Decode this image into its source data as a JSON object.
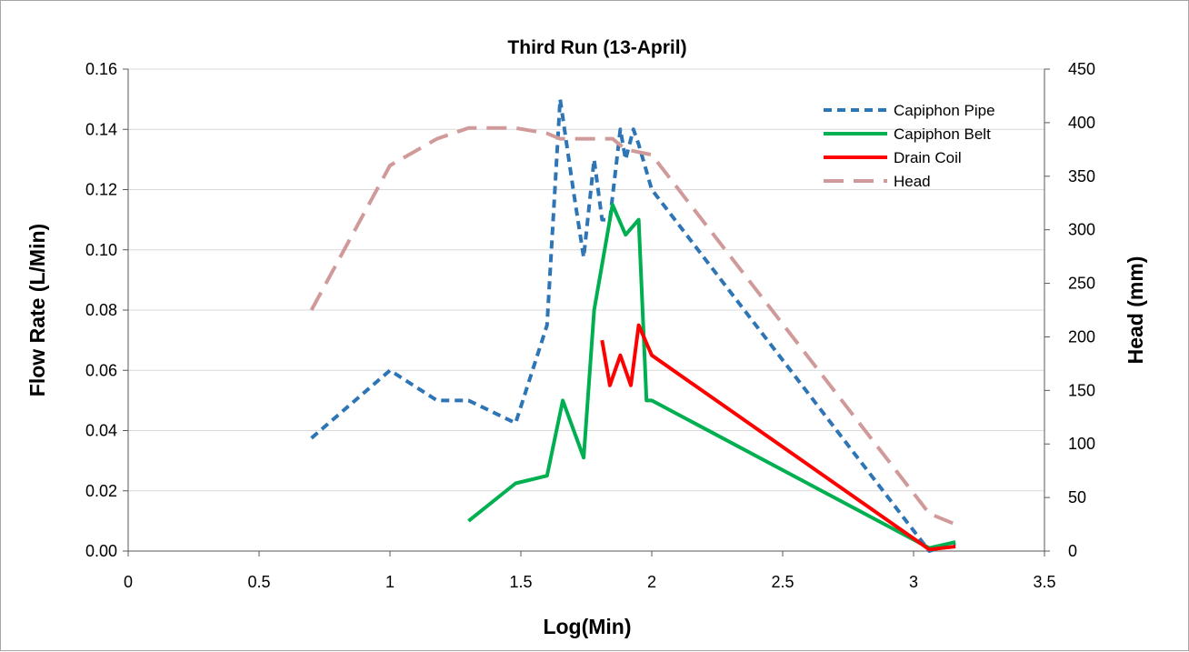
{
  "chart_data": {
    "type": "line",
    "title": "Third Run (13-April)",
    "xlabel": "Log(Min)",
    "ylabel": "Flow Rate (L/Min)",
    "y2label": "Head (mm)",
    "xlim": [
      0,
      3.5
    ],
    "ylim": [
      0,
      0.16
    ],
    "y2lim": [
      0,
      450
    ],
    "x_ticks": [
      "0",
      "0.5",
      "1",
      "1.5",
      "2",
      "2.5",
      "3",
      "3.5"
    ],
    "y_ticks": [
      "0.00",
      "0.02",
      "0.04",
      "0.06",
      "0.08",
      "0.10",
      "0.12",
      "0.14",
      "0.16"
    ],
    "y2_ticks": [
      "0",
      "50",
      "100",
      "150",
      "200",
      "250",
      "300",
      "350",
      "400",
      "450"
    ],
    "grid": "horizontal",
    "legend_position": "top-right",
    "series": [
      {
        "name": "Capiphon Pipe",
        "axis": "left",
        "color": "#2e75b6",
        "style": "dashed",
        "points": [
          [
            0.7,
            0.0375
          ],
          [
            1.0,
            0.06
          ],
          [
            1.18,
            0.05
          ],
          [
            1.3,
            0.05
          ],
          [
            1.48,
            0.0425
          ],
          [
            1.6,
            0.075
          ],
          [
            1.65,
            0.15
          ],
          [
            1.7,
            0.12
          ],
          [
            1.74,
            0.0975
          ],
          [
            1.78,
            0.13
          ],
          [
            1.81,
            0.11
          ],
          [
            1.84,
            0.11
          ],
          [
            1.88,
            0.14
          ],
          [
            1.9,
            0.13
          ],
          [
            1.93,
            0.14
          ],
          [
            1.95,
            0.135
          ],
          [
            2.0,
            0.12
          ],
          [
            3.06,
            0.0
          ],
          [
            3.16,
            0.0025
          ]
        ]
      },
      {
        "name": "Capiphon Belt",
        "axis": "left",
        "color": "#00b050",
        "style": "solid",
        "points": [
          [
            1.3,
            0.01
          ],
          [
            1.48,
            0.0225
          ],
          [
            1.6,
            0.025
          ],
          [
            1.66,
            0.05
          ],
          [
            1.74,
            0.031
          ],
          [
            1.78,
            0.08
          ],
          [
            1.85,
            0.115
          ],
          [
            1.9,
            0.105
          ],
          [
            1.95,
            0.11
          ],
          [
            1.98,
            0.05
          ],
          [
            2.0,
            0.05
          ],
          [
            3.06,
            0.001
          ],
          [
            3.16,
            0.003
          ]
        ]
      },
      {
        "name": "Drain Coil",
        "axis": "left",
        "color": "#ff0000",
        "style": "solid",
        "points": [
          [
            1.81,
            0.07
          ],
          [
            1.84,
            0.055
          ],
          [
            1.88,
            0.065
          ],
          [
            1.92,
            0.055
          ],
          [
            1.95,
            0.075
          ],
          [
            2.0,
            0.065
          ],
          [
            3.06,
            0.0005
          ],
          [
            3.16,
            0.0015
          ]
        ]
      },
      {
        "name": "Head",
        "axis": "right",
        "color": "#d19a9a",
        "style": "long-dash",
        "points": [
          [
            0.7,
            225
          ],
          [
            1.0,
            360
          ],
          [
            1.18,
            385
          ],
          [
            1.3,
            395
          ],
          [
            1.48,
            395
          ],
          [
            1.6,
            390
          ],
          [
            1.65,
            385
          ],
          [
            1.85,
            385
          ],
          [
            1.9,
            375
          ],
          [
            2.0,
            370
          ],
          [
            3.06,
            35
          ],
          [
            3.16,
            25
          ]
        ]
      }
    ]
  }
}
